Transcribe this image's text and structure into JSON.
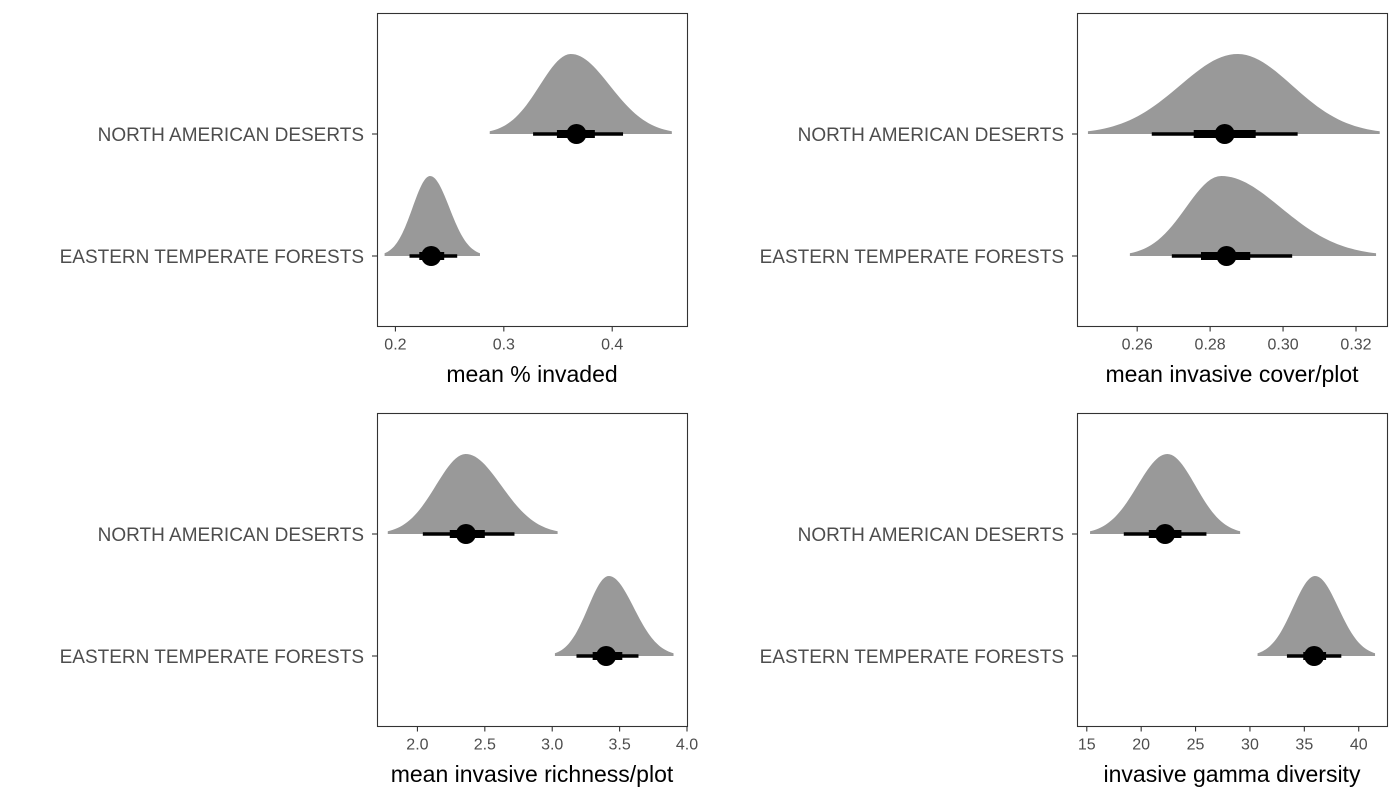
{
  "chart_data": [
    {
      "type": "density-interval",
      "xlabel": "mean % invaded",
      "xticks": [
        0.2,
        0.3,
        0.4
      ],
      "xtick_labels": [
        "0.2",
        "0.3",
        "0.4"
      ],
      "xlim": [
        0.183,
        0.469
      ],
      "categories": [
        "NORTH AMERICAN DESERTS",
        "EASTERN TEMPERATE FORESTS"
      ],
      "series": [
        {
          "category": "NORTH AMERICAN DESERTS",
          "median": 0.367,
          "inner_interval": [
            0.349,
            0.384
          ],
          "outer_interval": [
            0.327,
            0.41
          ],
          "density_range": [
            0.287,
            0.455
          ],
          "peak": 0.362
        },
        {
          "category": "EASTERN TEMPERATE FORESTS",
          "median": 0.233,
          "inner_interval": [
            0.222,
            0.245
          ],
          "outer_interval": [
            0.213,
            0.257
          ],
          "density_range": [
            0.19,
            0.278
          ],
          "peak": 0.232
        }
      ],
      "grid": false
    },
    {
      "type": "density-interval",
      "xlabel": "mean invasive cover/plot",
      "xticks": [
        0.26,
        0.28,
        0.3,
        0.32
      ],
      "xtick_labels": [
        "0.26",
        "0.28",
        "0.30",
        "0.32"
      ],
      "xlim": [
        0.2435,
        0.3285
      ],
      "categories": [
        "NORTH AMERICAN DESERTS",
        "EASTERN TEMPERATE FORESTS"
      ],
      "series": [
        {
          "category": "NORTH AMERICAN DESERTS",
          "median": 0.284,
          "inner_interval": [
            0.2755,
            0.2925
          ],
          "outer_interval": [
            0.264,
            0.304
          ],
          "density_range": [
            0.2465,
            0.3265
          ],
          "peak": 0.2875
        },
        {
          "category": "EASTERN TEMPERATE FORESTS",
          "median": 0.2845,
          "inner_interval": [
            0.2775,
            0.291
          ],
          "outer_interval": [
            0.2695,
            0.3025
          ],
          "density_range": [
            0.258,
            0.3255
          ],
          "peak": 0.283
        }
      ],
      "grid": false
    },
    {
      "type": "density-interval",
      "xlabel": "mean invasive richness/plot",
      "xticks": [
        2.0,
        2.5,
        3.0,
        3.5,
        4.0
      ],
      "xtick_labels": [
        "2.0",
        "2.5",
        "3.0",
        "3.5",
        "4.0"
      ],
      "xlim": [
        1.7,
        4.0
      ],
      "categories": [
        "NORTH AMERICAN DESERTS",
        "EASTERN TEMPERATE FORESTS"
      ],
      "series": [
        {
          "category": "NORTH AMERICAN DESERTS",
          "median": 2.36,
          "inner_interval": [
            2.24,
            2.5
          ],
          "outer_interval": [
            2.04,
            2.72
          ],
          "density_range": [
            1.78,
            3.04
          ],
          "peak": 2.36
        },
        {
          "category": "EASTERN TEMPERATE FORESTS",
          "median": 3.4,
          "inner_interval": [
            3.3,
            3.52
          ],
          "outer_interval": [
            3.18,
            3.64
          ],
          "density_range": [
            3.02,
            3.9
          ],
          "peak": 3.42
        }
      ],
      "grid": false
    },
    {
      "type": "density-interval",
      "xlabel": "invasive gamma diversity",
      "xticks": [
        15,
        20,
        25,
        30,
        35,
        40
      ],
      "xtick_labels": [
        "15",
        "20",
        "25",
        "30",
        "35",
        "40"
      ],
      "xlim": [
        14.1,
        42.6
      ],
      "categories": [
        "NORTH AMERICAN DESERTS",
        "EASTERN TEMPERATE FORESTS"
      ],
      "series": [
        {
          "category": "NORTH AMERICAN DESERTS",
          "median": 22.2,
          "inner_interval": [
            20.7,
            23.7
          ],
          "outer_interval": [
            18.4,
            26.0
          ],
          "density_range": [
            15.3,
            29.1
          ],
          "peak": 22.4
        },
        {
          "category": "EASTERN TEMPERATE FORESTS",
          "median": 35.9,
          "inner_interval": [
            34.9,
            37.0
          ],
          "outer_interval": [
            33.4,
            38.4
          ],
          "density_range": [
            30.7,
            41.5
          ],
          "peak": 36.0
        }
      ],
      "grid": false
    }
  ]
}
